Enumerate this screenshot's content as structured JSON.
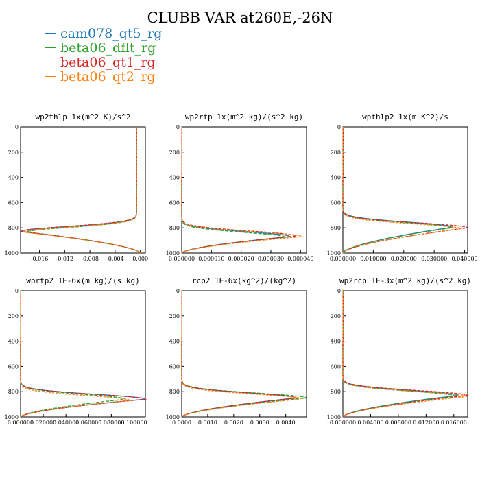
{
  "title": "CLUBB VAR at260E,-26N",
  "legend": [
    {
      "name": "cam078_qt5_rg",
      "color": "#1f77b4"
    },
    {
      "name": "beta06_dflt_rg",
      "color": "#2ca02c"
    },
    {
      "name": "beta06_qt1_rg",
      "color": "#d62728"
    },
    {
      "name": "beta06_qt2_rg",
      "color": "#ff7f0e"
    }
  ],
  "chart_data": [
    {
      "type": "line",
      "title": "wp2thlp  1x(m^2 K)/s^2",
      "xlim": [
        -0.019,
        0.0008
      ],
      "ylim": [
        1000,
        0
      ],
      "xticks": [
        "-0.016",
        "-0.012",
        "-0.008",
        "-0.004",
        "0.000"
      ],
      "xtick_values": [
        -0.016,
        -0.012,
        -0.008,
        -0.004,
        0.0
      ],
      "yticks": [
        0,
        200,
        400,
        600,
        800,
        1000
      ],
      "profile": {
        "kind": "neg",
        "peak": -0.019,
        "pk_level": 830,
        "base": -0.0006
      },
      "series": [
        {
          "name": "cam078_qt5_rg",
          "peak_scale": 1.0,
          "level_shift": 0
        },
        {
          "name": "beta06_dflt_rg",
          "peak_scale": 0.95,
          "level_shift": 5
        },
        {
          "name": "beta06_qt1_rg",
          "peak_scale": 1.0,
          "level_shift": -2
        },
        {
          "name": "beta06_qt2_rg",
          "peak_scale": 0.98,
          "level_shift": 4
        }
      ]
    },
    {
      "type": "line",
      "title": "wp2rtp  1x(m^2 kg)/(s^2 kg)",
      "xlim": [
        0,
        4.2e-05
      ],
      "ylim": [
        1000,
        0
      ],
      "xticks": [
        "0.000000",
        "0.000010",
        "0.000020",
        "0.000030",
        "0.000040"
      ],
      "xtick_values": [
        0,
        1e-05,
        2e-05,
        3e-05,
        4e-05
      ],
      "yticks": [
        0,
        200,
        400,
        600,
        800,
        1000
      ],
      "profile": {
        "kind": "pos",
        "peak": 4.05e-05,
        "pk_level": 870,
        "base": 0
      },
      "series": [
        {
          "name": "cam078_qt5_rg",
          "peak_scale": 0.9,
          "level_shift": 0
        },
        {
          "name": "beta06_dflt_rg",
          "peak_scale": 0.86,
          "level_shift": 5
        },
        {
          "name": "beta06_qt1_rg",
          "peak_scale": 0.95,
          "level_shift": -5
        },
        {
          "name": "beta06_qt2_rg",
          "peak_scale": 1.0,
          "level_shift": 0
        }
      ]
    },
    {
      "type": "line",
      "title": "wpthlp2  1x(m K^2)/s",
      "xlim": [
        0,
        0.041
      ],
      "ylim": [
        1000,
        0
      ],
      "xticks": [
        "0.000000",
        "0.010000",
        "0.020000",
        "0.030000",
        "0.040000"
      ],
      "xtick_values": [
        0,
        0.01,
        0.02,
        0.03,
        0.04
      ],
      "yticks": [
        0,
        200,
        400,
        600,
        800,
        1000
      ],
      "profile": {
        "kind": "pos",
        "peak": 0.041,
        "pk_level": 800,
        "base": 0
      },
      "series": [
        {
          "name": "cam078_qt5_rg",
          "peak_scale": 0.88,
          "level_shift": -5
        },
        {
          "name": "beta06_dflt_rg",
          "peak_scale": 0.87,
          "level_shift": 0
        },
        {
          "name": "beta06_qt1_rg",
          "peak_scale": 1.0,
          "level_shift": 0
        },
        {
          "name": "beta06_qt2_rg",
          "peak_scale": 0.95,
          "level_shift": 8
        }
      ]
    },
    {
      "type": "line",
      "title": "wprtp2  1E-6x(m kg)/(s kg)",
      "xlim": [
        0,
        0.11
      ],
      "ylim": [
        1000,
        0
      ],
      "xticks": [
        "0.000000",
        "0.020000",
        "0.040000",
        "0.060000",
        "0.080000",
        "0.100000"
      ],
      "xtick_values": [
        0,
        0.02,
        0.04,
        0.06,
        0.08,
        0.1
      ],
      "yticks": [
        0,
        200,
        400,
        600,
        800,
        1000
      ],
      "profile": {
        "kind": "pos",
        "peak": 0.11,
        "pk_level": 860,
        "base": 0
      },
      "series": [
        {
          "name": "cam078_qt5_rg",
          "peak_scale": 1.0,
          "level_shift": 0
        },
        {
          "name": "beta06_dflt_rg",
          "peak_scale": 0.84,
          "level_shift": 0
        },
        {
          "name": "beta06_qt1_rg",
          "peak_scale": 1.0,
          "level_shift": 0
        },
        {
          "name": "beta06_qt2_rg",
          "peak_scale": 0.88,
          "level_shift": 10
        }
      ]
    },
    {
      "type": "line",
      "title": "rcp2  1E-6x(kg^2)/(kg^2)",
      "xlim": [
        0,
        0.0048
      ],
      "ylim": [
        1000,
        0
      ],
      "xticks": [
        "0.0000",
        "0.0010",
        "0.0020",
        "0.0030",
        "0.0040"
      ],
      "xtick_values": [
        0,
        0.001,
        0.002,
        0.003,
        0.004
      ],
      "yticks": [
        0,
        200,
        400,
        600,
        800,
        1000
      ],
      "profile": {
        "kind": "pos",
        "peak": 0.0048,
        "pk_level": 850,
        "base": 0
      },
      "series": [
        {
          "name": "cam078_qt5_rg",
          "peak_scale": 0.92,
          "level_shift": 0
        },
        {
          "name": "beta06_dflt_rg",
          "peak_scale": 1.0,
          "level_shift": 0
        },
        {
          "name": "beta06_qt1_rg",
          "peak_scale": 0.92,
          "level_shift": 0
        },
        {
          "name": "beta06_qt2_rg",
          "peak_scale": 0.96,
          "level_shift": 8
        }
      ]
    },
    {
      "type": "line",
      "title": "wp2rcp  1E-3x(m^2 kg)/(s^2 kg)",
      "xlim": [
        0,
        0.018
      ],
      "ylim": [
        1000,
        0
      ],
      "xticks": [
        "0.000000",
        "0.004000",
        "0.008000",
        "0.012000",
        "0.016000"
      ],
      "xtick_values": [
        0,
        0.004,
        0.008,
        0.012,
        0.016
      ],
      "yticks": [
        0,
        200,
        400,
        600,
        800,
        1000
      ],
      "profile": {
        "kind": "pos",
        "peak": 0.018,
        "pk_level": 830,
        "base": 0
      },
      "series": [
        {
          "name": "cam078_qt5_rg",
          "peak_scale": 0.92,
          "level_shift": 0
        },
        {
          "name": "beta06_dflt_rg",
          "peak_scale": 0.9,
          "level_shift": 5
        },
        {
          "name": "beta06_qt1_rg",
          "peak_scale": 1.0,
          "level_shift": 0
        },
        {
          "name": "beta06_qt2_rg",
          "peak_scale": 1.0,
          "level_shift": 8
        }
      ]
    }
  ]
}
